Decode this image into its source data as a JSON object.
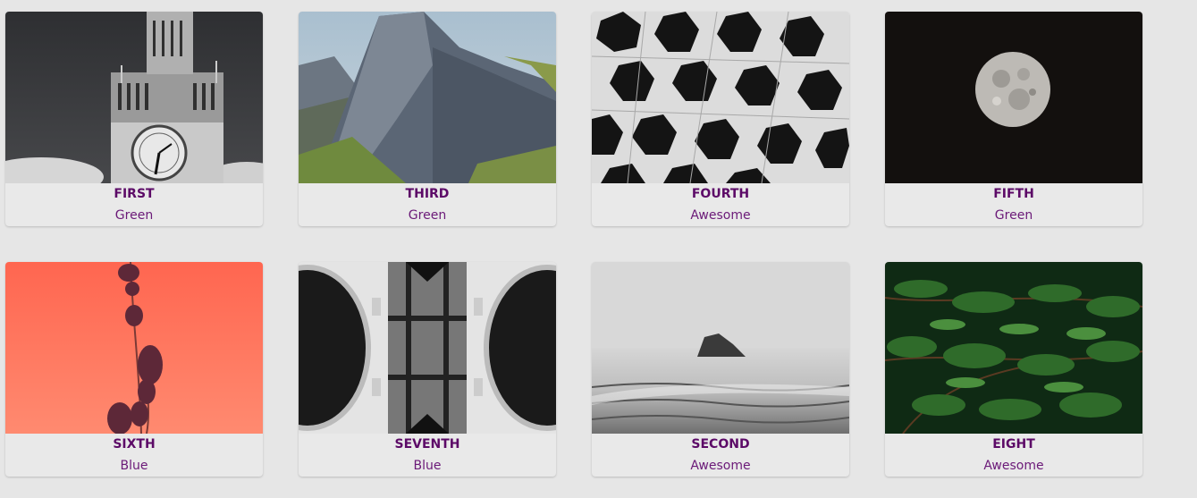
{
  "cards": [
    {
      "title": "FIRST",
      "subtitle": "Green",
      "image": "clock-tower-photo"
    },
    {
      "title": "THIRD",
      "subtitle": "Green",
      "image": "mountain-photo"
    },
    {
      "title": "FOURTH",
      "subtitle": "Awesome",
      "image": "hexagon-architecture-photo"
    },
    {
      "title": "FIFTH",
      "subtitle": "Green",
      "image": "moon-photo"
    },
    {
      "title": "SIXTH",
      "subtitle": "Blue",
      "image": "lavender-photo"
    },
    {
      "title": "SEVENTH",
      "subtitle": "Blue",
      "image": "ceiling-architecture-photo"
    },
    {
      "title": "SECOND",
      "subtitle": "Awesome",
      "image": "sea-rock-photo"
    },
    {
      "title": "EIGHT",
      "subtitle": "Awesome",
      "image": "fern-leaves-photo"
    }
  ],
  "colors": {
    "title": "#5c0a67",
    "subtitle": "#6b1a78",
    "background": "#e6e6e6"
  }
}
